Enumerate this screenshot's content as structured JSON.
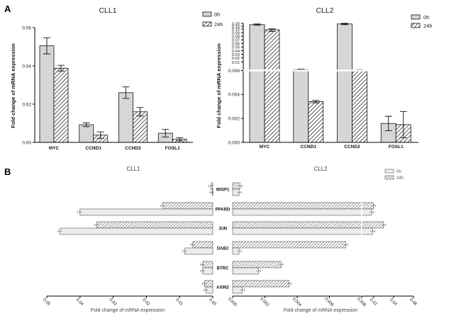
{
  "panels": {
    "a_label": "A",
    "b_label": "B"
  },
  "legend": {
    "labels": [
      "0h",
      "24h"
    ]
  },
  "chart_data": [
    {
      "id": "A1",
      "type": "bar",
      "title": "CLL1",
      "categories": [
        "MYC",
        "CCND1",
        "CCND2",
        "FOSL1"
      ],
      "series": [
        {
          "name": "0h",
          "values": [
            0.0505,
            0.0092,
            0.026,
            0.0048
          ],
          "errors": [
            0.0042,
            0.001,
            0.003,
            0.002
          ]
        },
        {
          "name": "24h",
          "values": [
            0.0388,
            0.0038,
            0.016,
            0.0016
          ],
          "errors": [
            0.0015,
            0.0017,
            0.0022,
            0.0008
          ]
        }
      ],
      "ylabel": "Fold change of mRNA expression",
      "ylim": [
        0,
        0.06
      ],
      "yticks": [
        "0.00",
        "0.02",
        "0.04",
        "0.06"
      ]
    },
    {
      "id": "A2",
      "type": "bar",
      "title": "CLL2",
      "broken_axis": true,
      "categories": [
        "MYC",
        "CCND1",
        "CCND2",
        "FOSL1"
      ],
      "series": [
        {
          "name": "0h",
          "values": [
            0.178,
            0.0064,
            0.19,
            0.00158
          ],
          "errors": [
            0.012,
            0.0002,
            0.012,
            0.0006
          ]
        },
        {
          "name": "24h",
          "values": [
            0.098,
            0.0034,
            0.0062,
            0.00148
          ],
          "errors": [
            0.005,
            0.0001,
            0.0002,
            0.0011
          ]
        }
      ],
      "ylabel": "Fold change of mRNA expression",
      "ylim_lower": [
        0,
        0.006
      ],
      "ylim_upper": [
        0.006,
        0.2
      ],
      "yticks_lower": [
        "0.000",
        "0.002",
        "0.004",
        "0.006"
      ],
      "yticks_upper": [
        "0.006",
        "0.01",
        "0.02",
        "0.03",
        "0.04",
        "0.05",
        "0.06",
        "0.07",
        "0.08",
        "0.09",
        "0.10",
        "0.15",
        "0.20"
      ]
    },
    {
      "id": "B",
      "type": "bar",
      "orientation": "horizontal",
      "titles": [
        "CLL1",
        "CLL2"
      ],
      "categories": [
        "WISP1",
        "PPARD",
        "JUN",
        "DAB2",
        "BTRC",
        "AXIN2"
      ],
      "series": [
        {
          "name": "0h",
          "cll1": [
            0.0002,
            0.04,
            0.046,
            0.0084,
            0.003,
            0.002
          ],
          "cll2": [
            0.0004,
            0.018,
            0.019,
            0.0004,
            0.0016,
            0.0006
          ]
        },
        {
          "name": "24h",
          "cll1": [
            0.0005,
            0.015,
            0.035,
            0.006,
            0.003,
            0.0025
          ],
          "cll2": [
            0.00045,
            0.02,
            0.03,
            0.007,
            0.003,
            0.0035
          ]
        }
      ],
      "xlabel": "Fold change of mRNA expression",
      "cll1_ticks": [
        "0.05",
        "0.04",
        "0.03",
        "0.02",
        "0.01",
        "0.00"
      ],
      "cll2_ticks": [
        "0.000",
        "0.002",
        "0.004",
        "0.006",
        "0.008",
        "0.02",
        "0.04",
        "0.06"
      ]
    }
  ]
}
